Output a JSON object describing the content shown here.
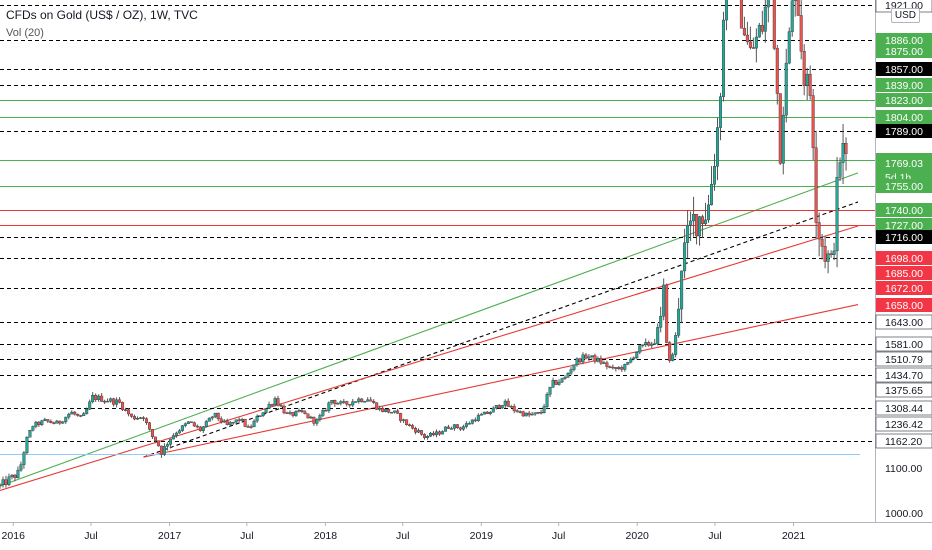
{
  "header": {
    "title": "CFDs on Gold (US$ / OZ), 1W, TVC",
    "indicator": "Vol (20)",
    "currency": "USD"
  },
  "chart_data": {
    "type": "candlestick",
    "symbol": "CFDs on Gold (US$ / OZ)",
    "interval": "1W",
    "source": "TVC",
    "x_labels": [
      "2016",
      "Jul",
      "2017",
      "Jul",
      "2018",
      "Jul",
      "2019",
      "Jul",
      "2020",
      "Jul",
      "2021"
    ],
    "x_range": [
      "2016-01",
      "2021-06"
    ],
    "y_range": [
      990,
      1925
    ],
    "y_scale": "log",
    "price_levels": [
      {
        "value": 1921.0,
        "label": "1921.00",
        "style": "dashed",
        "color": "#000000",
        "badge": "white"
      },
      {
        "value": 1886.0,
        "label": "1886.00",
        "style": "dashed",
        "color": "#000000",
        "badge": "green"
      },
      {
        "value": 1875.0,
        "label": "1875.00",
        "style": "none",
        "color": "#000000",
        "badge": "green"
      },
      {
        "value": 1857.0,
        "label": "1857.00",
        "style": "dashed",
        "color": "#000000",
        "badge": "black"
      },
      {
        "value": 1839.0,
        "label": "1839.00",
        "style": "dashed",
        "color": "#000000",
        "badge": "green"
      },
      {
        "value": 1823.0,
        "label": "1823.00",
        "style": "solid",
        "color": "#4caf50",
        "badge": "green"
      },
      {
        "value": 1804.0,
        "label": "1804.00",
        "style": "solid",
        "color": "#4caf50",
        "badge": "green"
      },
      {
        "value": 1789.0,
        "label": "1789.00",
        "style": "dashed",
        "color": "#000000",
        "badge": "black"
      },
      {
        "value": 1771.0,
        "label": "1771.00",
        "style": "solid",
        "color": "#4caf50",
        "badge": "green"
      },
      {
        "value": 1769.03,
        "label": "1769.03",
        "style": "none",
        "color": "#000000",
        "badge": "green"
      },
      {
        "value": 1755.0,
        "label": "1755.00",
        "style": "solid",
        "color": "#4caf50",
        "badge": "green"
      },
      {
        "value": 1740.0,
        "label": "1740.00",
        "style": "solid",
        "color": "#e53935",
        "badge": "green"
      },
      {
        "value": 1727.0,
        "label": "1727.00",
        "style": "solid",
        "color": "#e53935",
        "badge": "green"
      },
      {
        "value": 1716.0,
        "label": "1716.00",
        "style": "dashed",
        "color": "#000000",
        "badge": "black"
      },
      {
        "value": 1698.0,
        "label": "1698.00",
        "style": "dashed",
        "color": "#000000",
        "badge": "red"
      },
      {
        "value": 1685.0,
        "label": "1685.00",
        "style": "none",
        "color": "#000000",
        "badge": "red"
      },
      {
        "value": 1672.0,
        "label": "1672.00",
        "style": "dashed",
        "color": "#000000",
        "badge": "red"
      },
      {
        "value": 1658.0,
        "label": "1658.00",
        "style": "none",
        "color": "#000000",
        "badge": "red"
      },
      {
        "value": 1643.0,
        "label": "1643.00",
        "style": "dashed",
        "color": "#000000",
        "badge": "white"
      },
      {
        "value": 1581.0,
        "label": "1581.00",
        "style": "dashed",
        "color": "#000000",
        "badge": "white"
      },
      {
        "value": 1510.79,
        "label": "1510.79",
        "style": "dashed",
        "color": "#000000",
        "badge": "white"
      },
      {
        "value": 1434.7,
        "label": "1434.70",
        "style": "dashed",
        "color": "#000000",
        "badge": "white"
      },
      {
        "value": 1375.65,
        "label": "1375.65",
        "style": "none",
        "color": "#000000",
        "badge": "white"
      },
      {
        "value": 1308.44,
        "label": "1308.44",
        "style": "dashed",
        "color": "#000000",
        "badge": "white"
      },
      {
        "value": 1236.42,
        "label": "1236.42",
        "style": "none",
        "color": "#000000",
        "badge": "white"
      },
      {
        "value": 1162.2,
        "label": "1162.20",
        "style": "dashed",
        "color": "#000000",
        "badge": "white"
      },
      {
        "value": 1100.0,
        "label": "1100.00",
        "style": "none",
        "color": "#000000",
        "badge": "plain"
      },
      {
        "value": 1000.0,
        "label": "1000.00",
        "style": "none",
        "color": "#000000",
        "badge": "plain"
      }
    ],
    "trendlines": [
      {
        "color": "#4caf50",
        "style": "solid",
        "from": [
          "2015-12",
          1060
        ],
        "to": [
          "2021-06",
          1763
        ]
      },
      {
        "color": "#000000",
        "style": "dashed",
        "from": [
          "2016-11",
          1125
        ],
        "to": [
          "2021-06",
          1745
        ]
      },
      {
        "color": "#e53935",
        "style": "solid",
        "from": [
          "2015-12",
          1050
        ],
        "to": [
          "2021-06",
          1726
        ]
      },
      {
        "color": "#e53935",
        "style": "solid",
        "from": [
          "2016-11",
          1125
        ],
        "to": [
          "2021-06",
          1658
        ]
      }
    ],
    "current_price": {
      "value": 1769.03,
      "countdown": "5d 1h"
    },
    "extra_levels": [
      {
        "value": 1133,
        "color": "#90caf9"
      }
    ],
    "price_path": [
      [
        "2015-12-01",
        1060
      ],
      [
        "2016-01-15",
        1090
      ],
      [
        "2016-02-15",
        1230
      ],
      [
        "2016-03-15",
        1250
      ],
      [
        "2016-04-15",
        1240
      ],
      [
        "2016-05-15",
        1290
      ],
      [
        "2016-06-10",
        1260
      ],
      [
        "2016-07-05",
        1350
      ],
      [
        "2016-08-05",
        1340
      ],
      [
        "2016-09-05",
        1330
      ],
      [
        "2016-10-05",
        1265
      ],
      [
        "2016-11-01",
        1270
      ],
      [
        "2016-11-20",
        1185
      ],
      [
        "2016-12-15",
        1135
      ],
      [
        "2017-01-15",
        1200
      ],
      [
        "2017-02-15",
        1245
      ],
      [
        "2017-03-15",
        1210
      ],
      [
        "2017-04-15",
        1280
      ],
      [
        "2017-05-15",
        1230
      ],
      [
        "2017-06-15",
        1260
      ],
      [
        "2017-07-05",
        1215
      ],
      [
        "2017-08-01",
        1280
      ],
      [
        "2017-09-05",
        1345
      ],
      [
        "2017-10-05",
        1275
      ],
      [
        "2017-11-05",
        1290
      ],
      [
        "2017-12-10",
        1245
      ],
      [
        "2018-01-15",
        1340
      ],
      [
        "2018-02-10",
        1320
      ],
      [
        "2018-03-15",
        1340
      ],
      [
        "2018-04-10",
        1345
      ],
      [
        "2018-05-10",
        1300
      ],
      [
        "2018-06-10",
        1290
      ],
      [
        "2018-07-15",
        1230
      ],
      [
        "2018-08-10",
        1200
      ],
      [
        "2018-08-20",
        1180
      ],
      [
        "2018-09-20",
        1195
      ],
      [
        "2018-10-20",
        1230
      ],
      [
        "2018-11-15",
        1220
      ],
      [
        "2018-12-20",
        1265
      ],
      [
        "2019-01-20",
        1290
      ],
      [
        "2019-02-20",
        1330
      ],
      [
        "2019-03-20",
        1300
      ],
      [
        "2019-04-20",
        1275
      ],
      [
        "2019-05-20",
        1285
      ],
      [
        "2019-06-15",
        1400
      ],
      [
        "2019-07-15",
        1420
      ],
      [
        "2019-08-10",
        1500
      ],
      [
        "2019-09-05",
        1525
      ],
      [
        "2019-10-05",
        1500
      ],
      [
        "2019-11-05",
        1460
      ],
      [
        "2019-12-05",
        1475
      ],
      [
        "2020-01-05",
        1560
      ],
      [
        "2020-02-10",
        1590
      ],
      [
        "2020-03-05",
        1670
      ],
      [
        "2020-03-18",
        1480
      ],
      [
        "2020-04-10",
        1690
      ],
      [
        "2020-05-10",
        1730
      ],
      [
        "2020-06-15",
        1740
      ],
      [
        "2020-07-10",
        1800
      ],
      [
        "2020-07-25",
        1940
      ],
      [
        "2020-08-07",
        2060
      ],
      [
        "2020-08-20",
        1940
      ],
      [
        "2020-09-20",
        1870
      ],
      [
        "2020-10-20",
        1900
      ],
      [
        "2020-11-10",
        1950
      ],
      [
        "2020-11-30",
        1780
      ],
      [
        "2020-12-20",
        1880
      ],
      [
        "2021-01-06",
        1950
      ],
      [
        "2021-01-25",
        1850
      ],
      [
        "2021-02-10",
        1830
      ],
      [
        "2021-02-25",
        1730
      ],
      [
        "2021-03-10",
        1710
      ],
      [
        "2021-03-30",
        1690
      ],
      [
        "2021-04-20",
        1775
      ],
      [
        "2021-05-05",
        1770
      ]
    ]
  }
}
